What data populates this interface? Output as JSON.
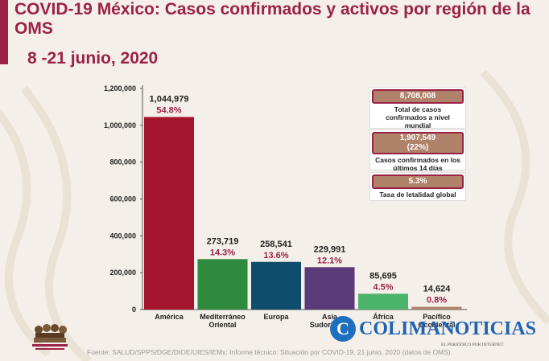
{
  "header": {
    "title": "COVID-19 México: Casos confirmados y activos por región de la OMS",
    "subtitle": "8 -21 junio, 2020"
  },
  "chart_data": {
    "type": "bar",
    "categories": [
      "América",
      "Mediterráneo Oriental",
      "Europa",
      "Asia Sudoriental",
      "África",
      "Pacífico Occidental"
    ],
    "category_lines": [
      [
        "América"
      ],
      [
        "Mediterráneo",
        "Oriental"
      ],
      [
        "Europa"
      ],
      [
        "Asia",
        "Sudoriental"
      ],
      [
        "África"
      ],
      [
        "Pacífico",
        "Occidental"
      ]
    ],
    "values": [
      1044979,
      273719,
      258541,
      229991,
      85695,
      14624
    ],
    "value_labels": [
      "1,044,979",
      "273,719",
      "258,541",
      "229,991",
      "85,695",
      "14,624"
    ],
    "percent_labels": [
      "54.8%",
      "14.3%",
      "13.6%",
      "12.1%",
      "4.5%",
      "0.8%"
    ],
    "colors": [
      "#a4142d",
      "#2e8b3e",
      "#0e4d6c",
      "#5b3a7a",
      "#4cb36b",
      "#b0826a"
    ],
    "percent_color": "#9b2247",
    "ylim": [
      0,
      1200000
    ],
    "yticks": [
      0,
      200000,
      400000,
      600000,
      800000,
      1000000,
      1200000
    ],
    "ytick_labels": [
      "0",
      "200,000",
      "400,000",
      "600,000",
      "800,000",
      "1,000,000",
      "1,200,000"
    ],
    "grid": false,
    "xlabel": "",
    "ylabel": ""
  },
  "info_boxes": [
    {
      "value": "8,708,008",
      "text": "Total de casos confirmados a nivel mundial"
    },
    {
      "value": "1,907,549",
      "value2": "(22%)",
      "text": "Casos confirmados en los últimos 14 días"
    },
    {
      "value": "5.3%",
      "text": "Tasa de letalidad global"
    }
  ],
  "footer": {
    "source": "Fuente: SALUD/SPPS/DGE/DIOE/UIES/IEMx: Informe técnico: Situación por COVID-19, 21 junio, 2020 (datos de OMS).",
    "brand_name": "COLIMANOTICIAS",
    "brand_tagline": "EL PERIÓDICO POR INTERNET",
    "logo_icon": "gobierno-de-mexico-logo",
    "brand_icon": "colimanoticias-logo-icon"
  }
}
